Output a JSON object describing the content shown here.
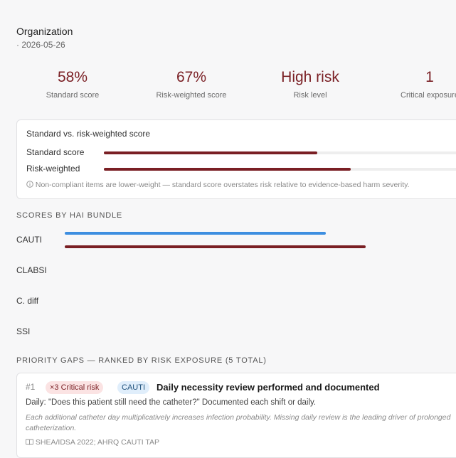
{
  "header": {
    "organization": "Organization",
    "date": "· 2026-05-26"
  },
  "metrics": [
    {
      "value": "58%",
      "label": "Standard score"
    },
    {
      "value": "67%",
      "label": "Risk-weighted score"
    },
    {
      "value": "High risk",
      "label": "Risk level"
    },
    {
      "value": "1",
      "label": "Critical exposure"
    }
  ],
  "comparison": {
    "title": "Standard vs. risk-weighted score",
    "standard_label": "Standard score",
    "standard_pct": 58,
    "weighted_label": "Risk-weighted",
    "weighted_pct": 67,
    "note": "Non-compliant items are lower-weight — standard score overstates risk relative to evidence-based harm severity."
  },
  "bundles": {
    "header": "SCORES BY HAI BUNDLE",
    "items": [
      {
        "name": "CAUTI",
        "standard_pct": 58,
        "weighted_pct": 67
      },
      {
        "name": "CLABSI"
      },
      {
        "name": "C. diff"
      },
      {
        "name": "SSI"
      }
    ]
  },
  "gaps": {
    "header": "PRIORITY GAPS — RANKED BY RISK EXPOSURE (5 TOTAL)",
    "items": [
      {
        "rank": "#1",
        "risk_badge": "×3 Critical risk",
        "bundle_badge": "CAUTI",
        "title": "Daily necessity review performed and documented",
        "description": "Daily: \"Does this patient still need the catheter?\" Documented each shift or daily.",
        "rationale": "Each additional catheter day multiplicatively increases infection probability. Missing daily review is the leading driver of prolonged catheterization.",
        "reference": "SHEA/IDSA 2022; AHRQ CAUTI TAP"
      }
    ]
  },
  "colors": {
    "weighted": "#7a1f24",
    "standard_bundle": "#3d8ee0",
    "track": "#eeeeee"
  },
  "icons": {
    "note": "info-icon",
    "reference": "book-icon"
  }
}
